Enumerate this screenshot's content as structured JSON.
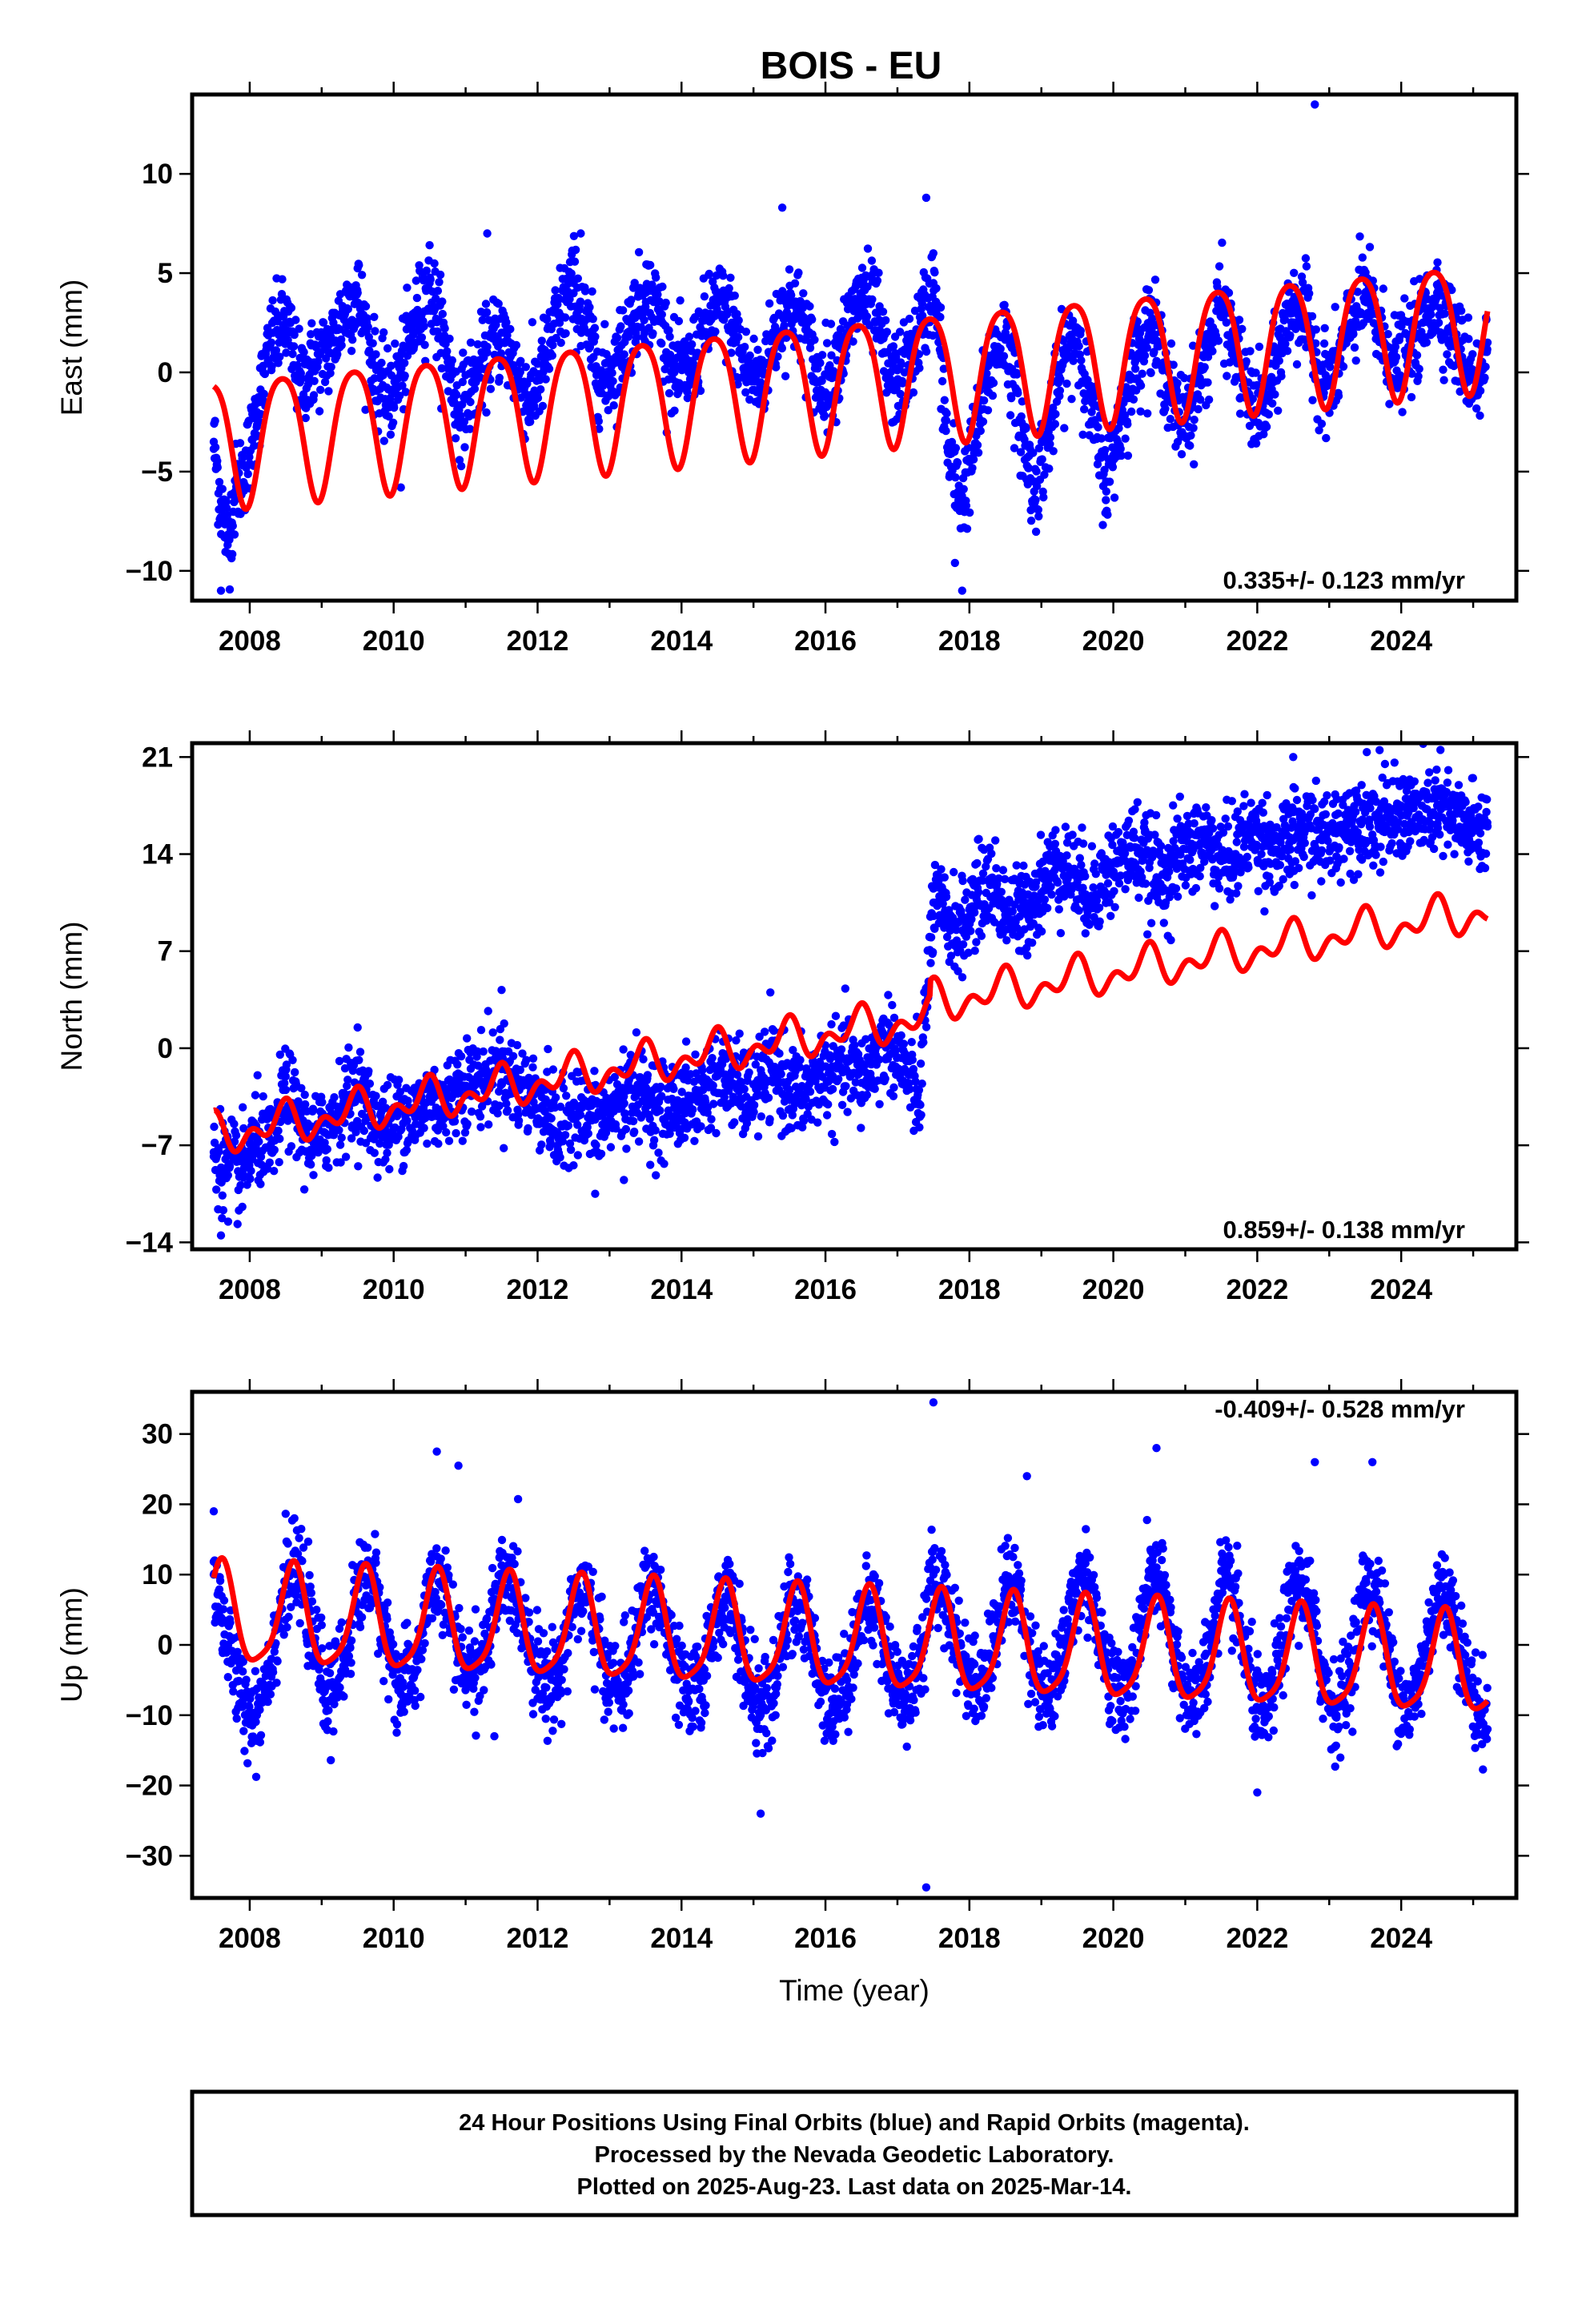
{
  "figure_title": "BOIS - EU",
  "x_axis_label": "Time (year)",
  "footer": {
    "line1": "24 Hour Positions Using Final Orbits (blue) and Rapid Orbits (magenta).",
    "line2": "Processed by the Nevada Geodetic Laboratory.",
    "line3": "Plotted on 2025-Aug-23. Last data on 2025-Mar-14."
  },
  "colors": {
    "observations": "#0000ff",
    "model": "#ff0000",
    "frame": "#000000"
  },
  "chart_data": [
    {
      "type": "scatter",
      "component": "east",
      "ylabel": "East (mm)",
      "rate_label": "0.335+/- 0.123 mm/yr",
      "xlim": [
        2007.2,
        2025.6
      ],
      "ylim": [
        -11.5,
        14
      ],
      "x_ticks": [
        2008,
        2010,
        2012,
        2014,
        2016,
        2018,
        2020,
        2022,
        2024
      ],
      "y_ticks": [
        -10,
        -5,
        0,
        5,
        10
      ],
      "grid": false,
      "series": [
        {
          "kind": "points",
          "x": [
            2007.5,
            2007.6,
            2007.7,
            2007.8,
            2008.0,
            2008.1,
            2008.3,
            2008.5,
            2008.7,
            2008.9,
            2009.1,
            2009.3,
            2009.5,
            2009.7,
            2009.9,
            2010.1,
            2010.3,
            2010.5,
            2010.7,
            2010.9,
            2011.1,
            2011.3,
            2011.5,
            2011.7,
            2011.9,
            2012.1,
            2012.3,
            2012.5,
            2012.7,
            2012.9,
            2013.1,
            2013.3,
            2013.5,
            2013.7,
            2013.9,
            2014.1,
            2014.3,
            2014.5,
            2014.7,
            2014.9,
            2015.1,
            2015.3,
            2015.5,
            2015.7,
            2015.9,
            2016.1,
            2016.3,
            2016.5,
            2016.7,
            2016.9,
            2017.1,
            2017.3,
            2017.5,
            2017.6,
            2017.7,
            2017.9,
            2018.1,
            2018.3,
            2018.5,
            2018.7,
            2018.9,
            2019.1,
            2019.3,
            2019.5,
            2019.7,
            2019.9,
            2020.1,
            2020.3,
            2020.5,
            2020.7,
            2020.9,
            2021.1,
            2021.3,
            2021.5,
            2021.7,
            2021.9,
            2022.1,
            2022.3,
            2022.5,
            2022.7,
            2022.9,
            2023.1,
            2023.3,
            2023.5,
            2023.7,
            2023.9,
            2024.1,
            2024.3,
            2024.5,
            2024.7,
            2024.9,
            2025.1,
            2025.2
          ],
          "y": [
            -3.5,
            -6.5,
            -8.5,
            -6.0,
            -4.0,
            -2.0,
            1.5,
            2.5,
            -0.5,
            0.5,
            1.0,
            3.0,
            4.0,
            0.5,
            -1.5,
            0.0,
            2.5,
            4.5,
            1.5,
            -2.0,
            -0.5,
            1.0,
            2.0,
            0.0,
            -1.5,
            0.5,
            3.0,
            4.5,
            2.0,
            -0.5,
            0.5,
            2.5,
            4.0,
            3.0,
            0.0,
            0.0,
            2.0,
            3.5,
            2.5,
            0.0,
            -0.5,
            2.0,
            3.5,
            2.5,
            -0.5,
            0.0,
            2.0,
            4.0,
            3.0,
            -0.5,
            0.0,
            2.0,
            4.5,
            1.0,
            -4.0,
            -6.5,
            -3.0,
            0.5,
            2.0,
            -2.5,
            -6.0,
            -3.0,
            0.5,
            2.0,
            -2.0,
            -5.5,
            -2.5,
            0.5,
            2.5,
            0.5,
            -2.5,
            -1.5,
            1.0,
            3.5,
            1.0,
            -1.5,
            -2.0,
            1.0,
            3.5,
            2.5,
            -0.5,
            0.0,
            2.5,
            4.0,
            2.0,
            0.5,
            1.0,
            2.5,
            4.0,
            2.0,
            0.5,
            -0.5,
            1.5
          ]
        },
        {
          "kind": "outliers",
          "x": [
            2007.6,
            2010.1,
            2011.3,
            2012.6,
            2015.4,
            2017.4,
            2017.8,
            2017.9,
            2022.8
          ],
          "y": [
            -11,
            -5.8,
            7,
            7,
            8.3,
            8.8,
            -9.6,
            -11,
            13.5
          ]
        },
        {
          "kind": "model",
          "trend": 0.335,
          "offset_2016": -0.5,
          "annual_amp": 3.2,
          "annual_phase_year": 2008.45,
          "semiannual_amp": 0.5,
          "semiannual_phase_year": 2008.2
        }
      ]
    },
    {
      "type": "scatter",
      "component": "north",
      "ylabel": "North (mm)",
      "rate_label": "0.859+/- 0.138 mm/yr",
      "xlim": [
        2007.2,
        2025.6
      ],
      "ylim": [
        -14.5,
        22
      ],
      "x_ticks": [
        2008,
        2010,
        2012,
        2014,
        2016,
        2018,
        2020,
        2022,
        2024
      ],
      "y_ticks": [
        -14,
        -7,
        0,
        7,
        14,
        21
      ],
      "grid": false,
      "series": [
        {
          "kind": "points",
          "x": [
            2007.5,
            2007.7,
            2007.9,
            2008.1,
            2008.3,
            2008.5,
            2008.7,
            2008.9,
            2009.1,
            2009.3,
            2009.5,
            2009.7,
            2009.9,
            2010.1,
            2010.3,
            2010.5,
            2010.7,
            2010.9,
            2011.1,
            2011.3,
            2011.5,
            2011.7,
            2011.9,
            2012.1,
            2012.3,
            2012.5,
            2012.7,
            2012.9,
            2013.1,
            2013.3,
            2013.5,
            2013.7,
            2013.9,
            2014.1,
            2014.3,
            2014.5,
            2014.7,
            2014.9,
            2015.1,
            2015.3,
            2015.5,
            2015.7,
            2015.9,
            2016.1,
            2016.3,
            2016.5,
            2016.7,
            2016.9,
            2017.1,
            2017.3,
            2017.5,
            2017.7,
            2017.9,
            2018.1,
            2018.3,
            2018.5,
            2018.7,
            2018.9,
            2019.1,
            2019.3,
            2019.5,
            2019.7,
            2019.9,
            2020.1,
            2020.3,
            2020.5,
            2020.7,
            2020.9,
            2021.1,
            2021.3,
            2021.5,
            2021.7,
            2021.9,
            2022.1,
            2022.3,
            2022.5,
            2022.7,
            2022.9,
            2023.1,
            2023.3,
            2023.5,
            2023.7,
            2023.9,
            2024.1,
            2024.3,
            2024.5,
            2024.7,
            2024.9,
            2025.1,
            2025.2
          ],
          "y": [
            -7.5,
            -8.5,
            -9.0,
            -6.5,
            -7.5,
            -3.0,
            -5.5,
            -7.0,
            -5.5,
            -4.0,
            -3.0,
            -5.0,
            -6.0,
            -4.5,
            -5.0,
            -3.5,
            -4.5,
            -2.5,
            -2.5,
            -2.0,
            -1.5,
            -2.5,
            -3.5,
            -4.0,
            -6.5,
            -4.0,
            -5.0,
            -5.5,
            -4.0,
            -3.0,
            -3.5,
            -4.5,
            -4.0,
            -4.0,
            -3.0,
            -2.0,
            -2.5,
            -3.5,
            -2.5,
            -1.5,
            -3.0,
            -3.5,
            -2.0,
            -2.0,
            -1.0,
            -2.5,
            -0.5,
            0.5,
            -1.5,
            -4.0,
            10.5,
            9.0,
            8.5,
            11.0,
            12.0,
            10.0,
            9.5,
            11.0,
            12.5,
            13.5,
            12.0,
            11.0,
            12.5,
            13.5,
            14.5,
            13.0,
            12.5,
            14.0,
            14.5,
            15.0,
            13.5,
            14.0,
            15.5,
            15.0,
            14.0,
            15.0,
            16.0,
            15.0,
            15.5,
            16.5,
            17.0,
            16.0,
            16.5,
            17.0,
            16.5,
            17.5,
            16.5,
            16.0,
            15.5,
            16.0
          ]
        },
        {
          "kind": "outliers",
          "x": [
            2007.6,
            2007.7,
            2009.5,
            2011.5,
            2012.8,
            2013.2,
            2020.8,
            2022.5,
            2023.7
          ],
          "y": [
            -13.5,
            -12.5,
            1.5,
            4.2,
            -10.5,
            -9.5,
            7.8,
            21.0,
            21.5
          ]
        },
        {
          "kind": "model",
          "trend": 0.859,
          "offset_2016": 1.0,
          "step_year": 2017.45,
          "step_mm": 1.0,
          "annual_amp": 1.0,
          "annual_phase_year": 2008.45,
          "semiannual_amp": 0.9,
          "semiannual_phase_year": 2008.52
        }
      ]
    },
    {
      "type": "scatter",
      "component": "up",
      "ylabel": "Up (mm)",
      "rate_label": "-0.409+/- 0.528 mm/yr",
      "xlim": [
        2007.2,
        2025.6
      ],
      "ylim": [
        -36,
        36
      ],
      "x_ticks": [
        2008,
        2010,
        2012,
        2014,
        2016,
        2018,
        2020,
        2022,
        2024
      ],
      "y_ticks": [
        -30,
        -20,
        -10,
        0,
        10,
        20,
        30
      ],
      "grid": false,
      "series": [
        {
          "kind": "points",
          "x": [
            2007.5,
            2007.7,
            2007.9,
            2008.1,
            2008.3,
            2008.5,
            2008.7,
            2008.9,
            2009.1,
            2009.3,
            2009.5,
            2009.7,
            2009.9,
            2010.1,
            2010.3,
            2010.5,
            2010.7,
            2010.9,
            2011.1,
            2011.3,
            2011.5,
            2011.7,
            2011.9,
            2012.1,
            2012.3,
            2012.5,
            2012.7,
            2012.9,
            2013.1,
            2013.3,
            2013.5,
            2013.7,
            2013.9,
            2014.1,
            2014.3,
            2014.5,
            2014.7,
            2014.9,
            2015.1,
            2015.3,
            2015.5,
            2015.7,
            2015.9,
            2016.1,
            2016.3,
            2016.5,
            2016.7,
            2016.9,
            2017.1,
            2017.3,
            2017.5,
            2017.7,
            2017.9,
            2018.1,
            2018.3,
            2018.5,
            2018.7,
            2018.9,
            2019.1,
            2019.3,
            2019.5,
            2019.7,
            2019.9,
            2020.1,
            2020.3,
            2020.5,
            2020.7,
            2020.9,
            2021.1,
            2021.3,
            2021.5,
            2021.7,
            2021.9,
            2022.1,
            2022.3,
            2022.5,
            2022.7,
            2022.9,
            2023.1,
            2023.3,
            2023.5,
            2023.7,
            2023.9,
            2024.1,
            2024.3,
            2024.5,
            2024.7,
            2024.9,
            2025.1,
            2025.2
          ],
          "y": [
            10,
            0,
            -8,
            -10,
            -2,
            9,
            10,
            0,
            -8,
            -3,
            8,
            10,
            1,
            -7,
            -4,
            8,
            8,
            -2,
            -4,
            0,
            9,
            8,
            0,
            -6,
            -4,
            7,
            7,
            -2,
            -7,
            -3,
            8,
            7,
            -3,
            -8,
            -5,
            6,
            6,
            -4,
            -10,
            -6,
            6,
            5,
            -4,
            -9,
            -5,
            5,
            5,
            -3,
            -8,
            -3,
            10,
            6,
            -2,
            -6,
            -2,
            9,
            7,
            -3,
            -8,
            -2,
            10,
            8,
            -3,
            -8,
            -3,
            10,
            7,
            -3,
            -9,
            -3,
            9,
            6,
            -5,
            -11,
            -3,
            9,
            7,
            -4,
            -10,
            -3,
            9,
            6,
            -5,
            -10,
            -3,
            8,
            6,
            -4,
            -10,
            -12
          ]
        },
        {
          "kind": "outliers",
          "x": [
            2007.5,
            2010.6,
            2010.9,
            2011.4,
            2015.1,
            2017.5,
            2017.4,
            2018.8,
            2020.6,
            2022.0,
            2022.8,
            2023.6
          ],
          "y": [
            19,
            27.5,
            25.5,
            -13,
            -24,
            34.5,
            -34.5,
            24,
            28,
            -21,
            26,
            26
          ]
        },
        {
          "kind": "model",
          "trend": -0.409,
          "offset_2016": 0.5,
          "annual_amp": 7.0,
          "annual_phase_year": 2007.6,
          "semiannual_amp": 1.5,
          "semiannual_phase_year": 2007.63
        }
      ]
    }
  ]
}
